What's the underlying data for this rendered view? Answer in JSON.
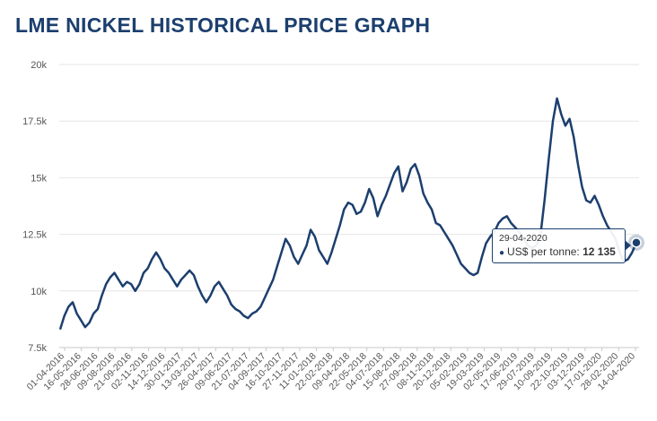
{
  "chart_data": {
    "type": "line",
    "title": "LME NICKEL HISTORICAL PRICE GRAPH",
    "ylim": [
      7500,
      20000
    ],
    "yticks": [
      7500,
      10000,
      12500,
      15000,
      17500,
      20000
    ],
    "ytick_labels": [
      "7.5k",
      "10k",
      "12.5k",
      "15k",
      "17.5k",
      "20k"
    ],
    "x_tick_labels": [
      "01-04-2016",
      "16-05-2016",
      "28-06-2016",
      "09-08-2016",
      "21-09-2016",
      "02-11-2016",
      "14-12-2016",
      "30-01-2017",
      "13-03-2017",
      "26-04-2017",
      "09-06-2017",
      "21-07-2017",
      "04-09-2017",
      "16-10-2017",
      "27-11-2017",
      "11-01-2018",
      "22-02-2018",
      "09-04-2018",
      "22-05-2018",
      "04-07-2018",
      "15-08-2018",
      "27-09-2018",
      "08-11-2018",
      "20-12-2018",
      "05-02-2019",
      "19-03-2019",
      "02-05-2019",
      "17-06-2019",
      "29-07-2019",
      "10-09-2019",
      "22-10-2019",
      "03-12-2019",
      "17-01-2020",
      "28-02-2020",
      "14-04-2020"
    ],
    "grid": true,
    "line_color": "#1c3f6e",
    "series": [
      {
        "values": [
          8300,
          8900,
          9300,
          9500,
          9000,
          8700,
          8400,
          8600,
          9000,
          9200,
          9800,
          10300,
          10600,
          10800,
          10500,
          10200,
          10400,
          10300,
          10000,
          10300,
          10800,
          11000,
          11400,
          11700,
          11400,
          11000,
          10800,
          10500,
          10200,
          10500,
          10700,
          10900,
          10700,
          10200,
          9800,
          9500,
          9800,
          10200,
          10400,
          10100,
          9800,
          9400,
          9200,
          9100,
          8900,
          8800,
          9000,
          9100,
          9300,
          9700,
          10100,
          10500,
          11100,
          11700,
          12300,
          12000,
          11500,
          11200,
          11600,
          12000,
          12700,
          12400,
          11800,
          11500,
          11200,
          11700,
          12300,
          12900,
          13600,
          13900,
          13800,
          13400,
          13500,
          13900,
          14500,
          14100,
          13300,
          13800,
          14200,
          14700,
          15200,
          15500,
          14400,
          14800,
          15400,
          15600,
          15100,
          14300,
          13900,
          13600,
          13000,
          12900,
          12600,
          12300,
          12000,
          11600,
          11200,
          11000,
          10800,
          10700,
          10800,
          11500,
          12100,
          12400,
          12600,
          13000,
          13200,
          13300,
          13000,
          12800,
          12600,
          12300,
          12000,
          11900,
          12000,
          12400,
          14000,
          15800,
          17500,
          18500,
          17800,
          17300,
          17600,
          16800,
          15600,
          14600,
          14000,
          13900,
          14200,
          13800,
          13300,
          12900,
          12600,
          12300,
          11700,
          11300,
          11400,
          11700,
          12135
        ]
      }
    ],
    "tooltip": {
      "date": "29-04-2020",
      "label": "US$ per tonne:",
      "value": "12 135"
    }
  }
}
